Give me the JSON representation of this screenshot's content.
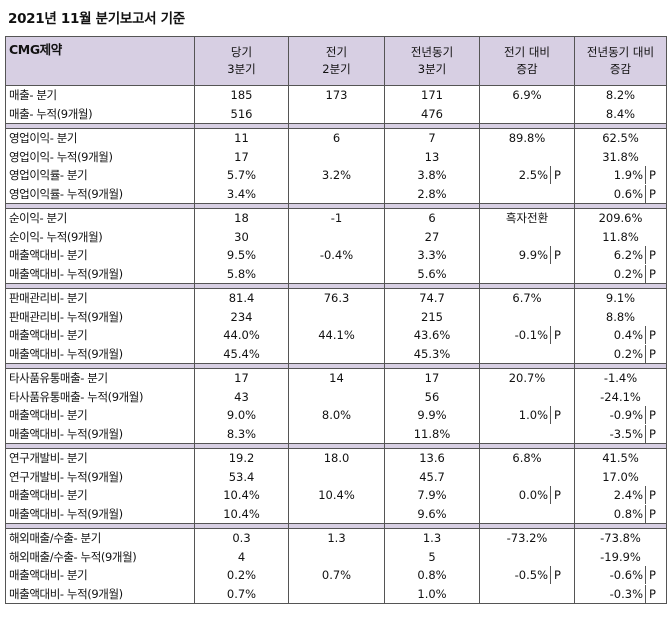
{
  "title": "2021년 11월 분기보고서 기준",
  "header": {
    "company": "CMG제약",
    "cols": [
      "당기\n3분기",
      "전기\n2분기",
      "전년동기\n3분기",
      "전기 대비\n증감",
      "전년동기 대비\n증감"
    ]
  },
  "groups": [
    {
      "rows": [
        {
          "label": "매출- 분기",
          "cur": "185",
          "prev": "173",
          "yoy": "171",
          "qoq": "6.9%",
          "qoq_f": "",
          "yoyc": "8.2%",
          "yoyc_f": ""
        },
        {
          "label": "매출- 누적(9개월)",
          "cur": "516",
          "prev": "",
          "yoy": "476",
          "qoq": "",
          "qoq_f": "",
          "yoyc": "8.4%",
          "yoyc_f": ""
        }
      ]
    },
    {
      "rows": [
        {
          "label": "영업이익- 분기",
          "cur": "11",
          "prev": "6",
          "yoy": "7",
          "qoq": "89.8%",
          "qoq_f": "",
          "yoyc": "62.5%",
          "yoyc_f": ""
        },
        {
          "label": "영업이익- 누적(9개월)",
          "cur": "17",
          "prev": "",
          "yoy": "13",
          "qoq": "",
          "qoq_f": "",
          "yoyc": "31.8%",
          "yoyc_f": ""
        },
        {
          "label": "영업이익률- 분기",
          "cur": "5.7%",
          "prev": "3.2%",
          "yoy": "3.8%",
          "qoq": "2.5%",
          "qoq_f": "P",
          "yoyc": "1.9%",
          "yoyc_f": "P"
        },
        {
          "label": "영업이익률- 누적(9개월)",
          "cur": "3.4%",
          "prev": "",
          "yoy": "2.8%",
          "qoq": "",
          "qoq_f": "",
          "yoyc": "0.6%",
          "yoyc_f": "P"
        }
      ]
    },
    {
      "rows": [
        {
          "label": "순이익- 분기",
          "cur": "18",
          "prev": "-1",
          "yoy": "6",
          "qoq": "흑자전환",
          "qoq_f": "",
          "yoyc": "209.6%",
          "yoyc_f": ""
        },
        {
          "label": "순이익- 누적(9개월)",
          "cur": "30",
          "prev": "",
          "yoy": "27",
          "qoq": "",
          "qoq_f": "",
          "yoyc": "11.8%",
          "yoyc_f": ""
        },
        {
          "label": "매출액대비- 분기",
          "cur": "9.5%",
          "prev": "-0.4%",
          "yoy": "3.3%",
          "qoq": "9.9%",
          "qoq_f": "P",
          "yoyc": "6.2%",
          "yoyc_f": "P"
        },
        {
          "label": "매출액대비- 누적(9개월)",
          "cur": "5.8%",
          "prev": "",
          "yoy": "5.6%",
          "qoq": "",
          "qoq_f": "",
          "yoyc": "0.2%",
          "yoyc_f": "P"
        }
      ]
    },
    {
      "rows": [
        {
          "label": "판매관리비- 분기",
          "cur": "81.4",
          "prev": "76.3",
          "yoy": "74.7",
          "qoq": "6.7%",
          "qoq_f": "",
          "yoyc": "9.1%",
          "yoyc_f": ""
        },
        {
          "label": "판매관리비- 누적(9개월)",
          "cur": "234",
          "prev": "",
          "yoy": "215",
          "qoq": "",
          "qoq_f": "",
          "yoyc": "8.8%",
          "yoyc_f": ""
        },
        {
          "label": "매출액대비- 분기",
          "cur": "44.0%",
          "prev": "44.1%",
          "yoy": "43.6%",
          "qoq": "-0.1%",
          "qoq_f": "P",
          "yoyc": "0.4%",
          "yoyc_f": "P"
        },
        {
          "label": "매출액대비- 누적(9개월)",
          "cur": "45.4%",
          "prev": "",
          "yoy": "45.3%",
          "qoq": "",
          "qoq_f": "",
          "yoyc": "0.2%",
          "yoyc_f": "P"
        }
      ]
    },
    {
      "rows": [
        {
          "label": "타사품유통매출- 분기",
          "cur": "17",
          "prev": "14",
          "yoy": "17",
          "qoq": "20.7%",
          "qoq_f": "",
          "yoyc": "-1.4%",
          "yoyc_f": ""
        },
        {
          "label": "타사품유통매출- 누적(9개월)",
          "cur": "43",
          "prev": "",
          "yoy": "56",
          "qoq": "",
          "qoq_f": "",
          "yoyc": "-24.1%",
          "yoyc_f": ""
        },
        {
          "label": "매출액대비- 분기",
          "cur": "9.0%",
          "prev": "8.0%",
          "yoy": "9.9%",
          "qoq": "1.0%",
          "qoq_f": "P",
          "yoyc": "-0.9%",
          "yoyc_f": "P"
        },
        {
          "label": "매출액대비- 누적(9개월)",
          "cur": "8.3%",
          "prev": "",
          "yoy": "11.8%",
          "qoq": "",
          "qoq_f": "",
          "yoyc": "-3.5%",
          "yoyc_f": "P"
        }
      ]
    },
    {
      "rows": [
        {
          "label": "연구개발비- 분기",
          "cur": "19.2",
          "prev": "18.0",
          "yoy": "13.6",
          "qoq": "6.8%",
          "qoq_f": "",
          "yoyc": "41.5%",
          "yoyc_f": ""
        },
        {
          "label": "연구개발비- 누적(9개월)",
          "cur": "53.4",
          "prev": "",
          "yoy": "45.7",
          "qoq": "",
          "qoq_f": "",
          "yoyc": "17.0%",
          "yoyc_f": ""
        },
        {
          "label": "매출액대비- 분기",
          "cur": "10.4%",
          "prev": "10.4%",
          "yoy": "7.9%",
          "qoq": "0.0%",
          "qoq_f": "P",
          "yoyc": "2.4%",
          "yoyc_f": "P"
        },
        {
          "label": "매출액대비- 누적(9개월)",
          "cur": "10.4%",
          "prev": "",
          "yoy": "9.6%",
          "qoq": "",
          "qoq_f": "",
          "yoyc": "0.8%",
          "yoyc_f": "P"
        }
      ]
    },
    {
      "rows": [
        {
          "label": "해외매출/수출- 분기",
          "cur": "0.3",
          "prev": "1.3",
          "yoy": "1.3",
          "qoq": "-73.2%",
          "qoq_f": "",
          "yoyc": "-73.8%",
          "yoyc_f": ""
        },
        {
          "label": "해외매출/수출- 누적(9개월)",
          "cur": "4",
          "prev": "",
          "yoy": "5",
          "qoq": "",
          "qoq_f": "",
          "yoyc": "-19.9%",
          "yoyc_f": ""
        },
        {
          "label": "매출액대비- 분기",
          "cur": "0.2%",
          "prev": "0.7%",
          "yoy": "0.8%",
          "qoq": "-0.5%",
          "qoq_f": "P",
          "yoyc": "-0.6%",
          "yoyc_f": "P"
        },
        {
          "label": "매출액대비- 누적(9개월)",
          "cur": "0.7%",
          "prev": "",
          "yoy": "1.0%",
          "qoq": "",
          "qoq_f": "",
          "yoyc": "-0.3%",
          "yoyc_f": "P"
        }
      ]
    }
  ]
}
